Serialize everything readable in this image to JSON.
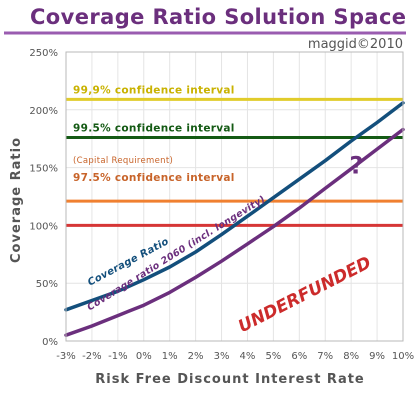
{
  "chart_data": {
    "type": "line",
    "title": "Coverage Ratio Solution Space",
    "subtitle": "maggid©2010",
    "xlabel": "Risk Free Discount Interest Rate",
    "ylabel": "Coverage Ratio",
    "x_unit": "%",
    "xlim": [
      -3,
      10
    ],
    "ylim": [
      0,
      250
    ],
    "x_ticks": [
      "-3%",
      "-2%",
      "-1%",
      "0%",
      "1%",
      "2%",
      "3%",
      "4%",
      "5%",
      "6%",
      "7%",
      "8%",
      "9%",
      "10%"
    ],
    "y_ticks": [
      "0%",
      "50%",
      "100%",
      "150%",
      "200%",
      "250%"
    ],
    "grid": true,
    "series": [
      {
        "name": "Coverage Ratio",
        "color": "#134f7c",
        "x": [
          -3,
          -2,
          -1,
          0,
          1,
          2,
          3,
          4,
          5,
          6,
          7,
          8,
          9,
          10
        ],
        "y": [
          27,
          35,
          43,
          53,
          64,
          77,
          92,
          108,
          124,
          140,
          156,
          173,
          189,
          206
        ]
      },
      {
        "name": "Coverage ratio 2060 (incl. longevity)",
        "color": "#6b2f7d",
        "x": [
          -3,
          -2,
          -1,
          0,
          1,
          2,
          3,
          4,
          5,
          6,
          7,
          8,
          9,
          10
        ],
        "y": [
          5,
          13,
          22,
          31,
          42,
          55,
          69,
          84,
          99,
          115,
          132,
          149,
          166,
          183
        ]
      }
    ],
    "reference_lines": [
      {
        "label": "99,9% confidence interval",
        "value": 209,
        "color": "#e1cc2a",
        "label_color": "#c9b200"
      },
      {
        "label": "99.5% confidence interval",
        "value": 176,
        "color": "#145a14",
        "label_color": "#145a14"
      },
      {
        "label": "(Capital Requirement)",
        "value": 121,
        "color": "#f08030",
        "label_color": "#c8642a"
      },
      {
        "label": "97.5% confidence interval",
        "value": 121,
        "color": "#f08030",
        "label_color": "#c8642a"
      },
      {
        "label": "",
        "value": 100,
        "color": "#d63636",
        "label_color": "#d63636"
      }
    ],
    "annotations": [
      {
        "text": "UNDERFUNDED",
        "x": 6.3,
        "y": 36,
        "color": "#cc2b2b"
      },
      {
        "text": "?",
        "x": 8.2,
        "y": 145,
        "color": "#6b2f7d"
      }
    ],
    "colors": {
      "title": "#6b2f7d",
      "title_rule": "#9a5cb0",
      "axis_text": "#555555",
      "grid": "#e4e4e4"
    }
  }
}
